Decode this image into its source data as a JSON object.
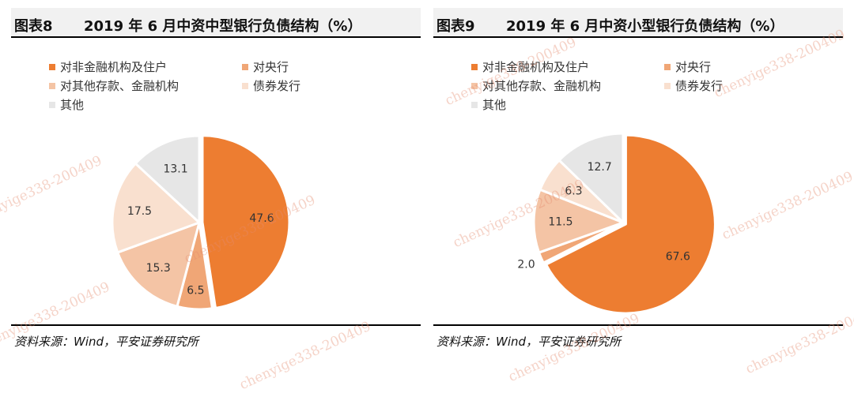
{
  "watermark": "chenyige338-200409",
  "charts": [
    {
      "fig_label": "图表8",
      "title": "2019 年 6 月中资中型银行负债结构（%）",
      "source": "资料来源：Wind，平安证券研究所"
    },
    {
      "fig_label": "图表9",
      "title": "2019 年 6 月中资小型银行负债结构（%）",
      "source": "资料来源：Wind，平安证券研究所"
    }
  ],
  "chart_data": [
    {
      "type": "pie",
      "title": "2019 年 6 月中资中型银行负债结构（%）",
      "legend": [
        "对非金融机构及住户",
        "对央行",
        "对其他存款、金融机构",
        "债券发行",
        "其他"
      ],
      "legend_placement": "top",
      "values": [
        47.6,
        6.5,
        15.3,
        17.5,
        13.1
      ],
      "labels": [
        "47.6",
        "6.5",
        "15.3",
        "17.5",
        "13.1"
      ],
      "colors": [
        "#ed7d31",
        "#f0a676",
        "#f4c4a5",
        "#f9e0cf",
        "#e6e6e6"
      ]
    },
    {
      "type": "pie",
      "title": "2019 年 6 月中资小型银行负债结构（%）",
      "legend": [
        "对非金融机构及住户",
        "对央行",
        "对其他存款、金融机构",
        "债券发行",
        "其他"
      ],
      "legend_placement": "top",
      "values": [
        67.6,
        2.0,
        11.5,
        6.3,
        12.7
      ],
      "labels": [
        "67.6",
        "2.0",
        "11.5",
        "6.3",
        "12.7"
      ],
      "colors": [
        "#ed7d31",
        "#f0a676",
        "#f4c4a5",
        "#f9e0cf",
        "#e6e6e6"
      ]
    }
  ]
}
